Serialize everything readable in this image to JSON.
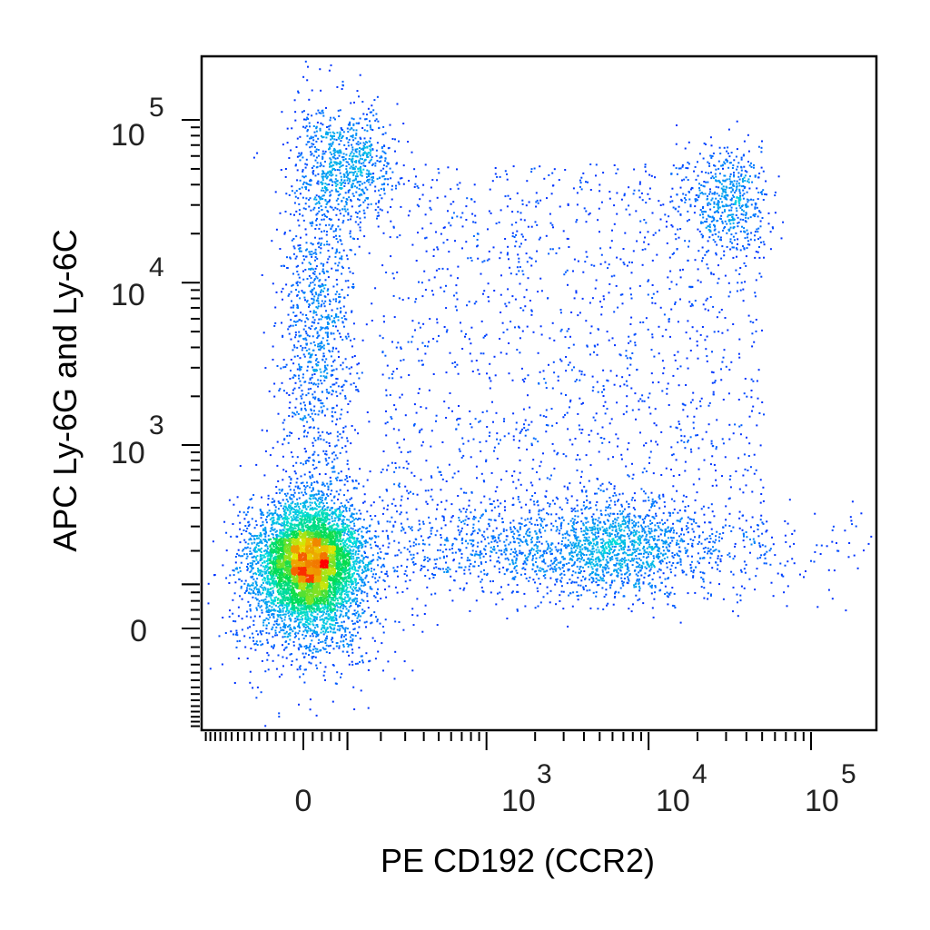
{
  "chart_data": {
    "type": "scatter",
    "title": "",
    "xlabel": "PE CD192 (CCR2)",
    "ylabel": "APC Ly-6G and Ly-6C",
    "x_scale": "biexponential (logicle)",
    "y_scale": "biexponential (logicle)",
    "xlim": [
      -300,
      100000
    ],
    "ylim": [
      -300,
      100000
    ],
    "grid": false,
    "legend": "none",
    "color_map": "density (blue-cyan-green-yellow-red)",
    "point_color_low": "#0000ff",
    "point_color_high": "#ff0000",
    "x_ticks": [
      {
        "value": 0,
        "label": "0",
        "exp": ""
      },
      {
        "value": 1000,
        "label": "10",
        "exp": "3"
      },
      {
        "value": 10000,
        "label": "10",
        "exp": "4"
      },
      {
        "value": 100000,
        "label": "10",
        "exp": "5"
      }
    ],
    "y_ticks": [
      {
        "value": 0,
        "label": "0",
        "exp": ""
      },
      {
        "value": 1000,
        "label": "10",
        "exp": "3"
      },
      {
        "value": 10000,
        "label": "10",
        "exp": "4"
      },
      {
        "value": 100000,
        "label": "10",
        "exp": "5"
      }
    ],
    "populations": [
      {
        "x_center": 40,
        "y_center": 250,
        "spread": "dense",
        "note": "double negative, highest density"
      },
      {
        "x_center": 60,
        "y_center": 20000,
        "spread": "vertical streak"
      },
      {
        "x_center": 150,
        "y_center": 60000,
        "spread": "cluster"
      },
      {
        "x_center": 4000,
        "y_center": 280,
        "spread": "horizontal band"
      },
      {
        "x_center": 25000,
        "y_center": 40000,
        "spread": "cluster"
      }
    ]
  }
}
